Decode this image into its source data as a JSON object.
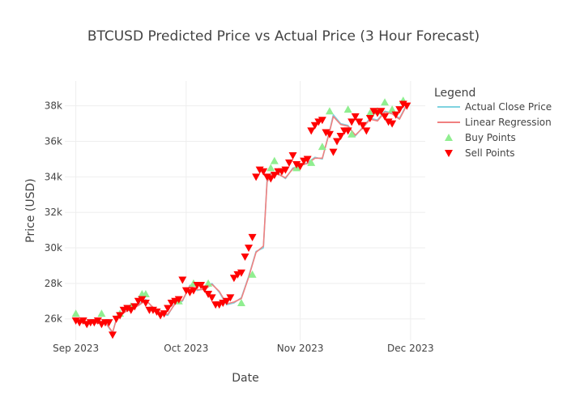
{
  "chart_data": {
    "type": "line",
    "title": "BTCUSD Predicted Price vs Actual Price (3 Hour Forecast)",
    "xlabel": "Date",
    "ylabel": "Price (USD)",
    "x_ticks": [
      "Sep 2023",
      "Oct 2023",
      "Nov 2023",
      "Dec 2023"
    ],
    "y_ticks": [
      "26k",
      "28k",
      "30k",
      "32k",
      "34k",
      "36k",
      "38k"
    ],
    "y_tick_values": [
      26000,
      28000,
      30000,
      32000,
      34000,
      36000,
      38000
    ],
    "ylim": [
      24800,
      39400
    ],
    "xlim": [
      "2023-08-29",
      "2023-12-05"
    ],
    "grid": true,
    "legend": {
      "title": "Legend",
      "placement": "right",
      "entries": [
        "Actual Close Price",
        "Linear Regression",
        "Buy Points",
        "Sell Points"
      ]
    },
    "colors": {
      "actual": "#7fd3e0",
      "regression": "#f08080",
      "buy": "#90ee90",
      "sell": "#ff0000"
    },
    "series": [
      {
        "name": "Actual Close Price",
        "kind": "line",
        "x": [
          "2023-09-01",
          "2023-09-03",
          "2023-09-05",
          "2023-09-07",
          "2023-09-09",
          "2023-09-11",
          "2023-09-12",
          "2023-09-14",
          "2023-09-16",
          "2023-09-18",
          "2023-09-20",
          "2023-09-22",
          "2023-09-24",
          "2023-09-26",
          "2023-09-28",
          "2023-09-30",
          "2023-10-02",
          "2023-10-04",
          "2023-10-06",
          "2023-10-08",
          "2023-10-10",
          "2023-10-12",
          "2023-10-14",
          "2023-10-16",
          "2023-10-18",
          "2023-10-20",
          "2023-10-22",
          "2023-10-23",
          "2023-10-24",
          "2023-10-26",
          "2023-10-28",
          "2023-10-30",
          "2023-11-01",
          "2023-11-03",
          "2023-11-05",
          "2023-11-07",
          "2023-11-09",
          "2023-11-10",
          "2023-11-12",
          "2023-11-14",
          "2023-11-16",
          "2023-11-18",
          "2023-11-20",
          "2023-11-22",
          "2023-11-24",
          "2023-11-26",
          "2023-11-28",
          "2023-11-30"
        ],
        "y": [
          26000,
          25800,
          25800,
          25800,
          25800,
          25200,
          26000,
          26400,
          26500,
          26800,
          27100,
          26600,
          26300,
          26200,
          26900,
          27000,
          27900,
          27600,
          27700,
          28000,
          27500,
          26800,
          26900,
          27200,
          28400,
          29800,
          30000,
          33800,
          34200,
          34200,
          33900,
          34500,
          34600,
          34800,
          35100,
          35000,
          36600,
          37500,
          37000,
          36900,
          36300,
          36800,
          37300,
          37200,
          37700,
          37600,
          37300,
          38100
        ]
      },
      {
        "name": "Linear Regression",
        "kind": "line",
        "x": [
          "2023-09-01",
          "2023-09-03",
          "2023-09-05",
          "2023-09-07",
          "2023-09-09",
          "2023-09-11",
          "2023-09-12",
          "2023-09-14",
          "2023-09-16",
          "2023-09-18",
          "2023-09-20",
          "2023-09-22",
          "2023-09-24",
          "2023-09-26",
          "2023-09-28",
          "2023-09-30",
          "2023-10-02",
          "2023-10-04",
          "2023-10-06",
          "2023-10-08",
          "2023-10-10",
          "2023-10-12",
          "2023-10-14",
          "2023-10-16",
          "2023-10-18",
          "2023-10-20",
          "2023-10-22",
          "2023-10-23",
          "2023-10-24",
          "2023-10-26",
          "2023-10-28",
          "2023-10-30",
          "2023-11-01",
          "2023-11-03",
          "2023-11-05",
          "2023-11-07",
          "2023-11-09",
          "2023-11-10",
          "2023-11-12",
          "2023-11-14",
          "2023-11-16",
          "2023-11-18",
          "2023-11-20",
          "2023-11-22",
          "2023-11-24",
          "2023-11-26",
          "2023-11-28",
          "2023-11-30"
        ],
        "y": [
          25950,
          25750,
          25780,
          25760,
          25820,
          25250,
          25950,
          26350,
          26550,
          26750,
          27050,
          26650,
          26350,
          26250,
          26850,
          27050,
          27850,
          27650,
          27650,
          27950,
          27550,
          26850,
          26950,
          27150,
          28350,
          29750,
          30100,
          33700,
          34100,
          34150,
          33950,
          34450,
          34650,
          34750,
          35050,
          35050,
          36550,
          37400,
          36950,
          36850,
          36350,
          36750,
          37250,
          37150,
          37650,
          37550,
          37250,
          38050
        ]
      },
      {
        "name": "Buy Points",
        "kind": "markers",
        "x": [
          "2023-09-01",
          "2023-09-08",
          "2023-09-13",
          "2023-09-16",
          "2023-09-19",
          "2023-09-20",
          "2023-09-29",
          "2023-10-03",
          "2023-10-07",
          "2023-10-16",
          "2023-10-19",
          "2023-10-24",
          "2023-10-25",
          "2023-10-31",
          "2023-11-04",
          "2023-11-07",
          "2023-11-09",
          "2023-11-14",
          "2023-11-15",
          "2023-11-20",
          "2023-11-22",
          "2023-11-24",
          "2023-11-26",
          "2023-11-29"
        ],
        "y": [
          26300,
          26300,
          26300,
          26700,
          27400,
          27400,
          27000,
          28000,
          28000,
          26900,
          28500,
          34500,
          34900,
          34500,
          34800,
          35700,
          37700,
          37800,
          36400,
          37600,
          37700,
          38200,
          37800,
          38300
        ]
      },
      {
        "name": "Sell Points",
        "kind": "markers",
        "x": [
          "2023-09-01",
          "2023-09-02",
          "2023-09-03",
          "2023-09-04",
          "2023-09-05",
          "2023-09-06",
          "2023-09-07",
          "2023-09-08",
          "2023-09-09",
          "2023-09-10",
          "2023-09-11",
          "2023-09-12",
          "2023-09-13",
          "2023-09-14",
          "2023-09-15",
          "2023-09-16",
          "2023-09-17",
          "2023-09-18",
          "2023-09-19",
          "2023-09-20",
          "2023-09-21",
          "2023-09-22",
          "2023-09-23",
          "2023-09-24",
          "2023-09-25",
          "2023-09-26",
          "2023-09-27",
          "2023-09-28",
          "2023-09-29",
          "2023-09-30",
          "2023-10-01",
          "2023-10-02",
          "2023-10-03",
          "2023-10-04",
          "2023-10-05",
          "2023-10-06",
          "2023-10-07",
          "2023-10-08",
          "2023-10-09",
          "2023-10-10",
          "2023-10-11",
          "2023-10-12",
          "2023-10-13",
          "2023-10-14",
          "2023-10-15",
          "2023-10-16",
          "2023-10-17",
          "2023-10-18",
          "2023-10-19",
          "2023-10-20",
          "2023-10-21",
          "2023-10-22",
          "2023-10-23",
          "2023-10-24",
          "2023-10-25",
          "2023-10-26",
          "2023-10-27",
          "2023-10-28",
          "2023-10-29",
          "2023-10-30",
          "2023-10-31",
          "2023-11-01",
          "2023-11-02",
          "2023-11-03",
          "2023-11-04",
          "2023-11-05",
          "2023-11-06",
          "2023-11-07",
          "2023-11-08",
          "2023-11-09",
          "2023-11-10",
          "2023-11-11",
          "2023-11-12",
          "2023-11-13",
          "2023-11-14",
          "2023-11-15",
          "2023-11-16",
          "2023-11-17",
          "2023-11-18",
          "2023-11-19",
          "2023-11-20",
          "2023-11-21",
          "2023-11-22",
          "2023-11-23",
          "2023-11-24",
          "2023-11-25",
          "2023-11-26",
          "2023-11-27",
          "2023-11-28",
          "2023-11-29",
          "2023-11-30"
        ],
        "y": [
          25900,
          25800,
          25900,
          25700,
          25800,
          25800,
          25900,
          25700,
          25800,
          25800,
          25100,
          26000,
          26200,
          26500,
          26600,
          26500,
          26700,
          27000,
          27100,
          26900,
          26500,
          26500,
          26400,
          26200,
          26300,
          26600,
          26900,
          27000,
          27100,
          28200,
          27600,
          27500,
          27600,
          27900,
          27900,
          27700,
          27400,
          27200,
          26800,
          26800,
          26900,
          27000,
          27200,
          28300,
          28500,
          28600,
          29500,
          30000,
          30600,
          34000,
          34400,
          34300,
          34000,
          33900,
          34100,
          34300,
          34300,
          34400,
          34800,
          35200,
          34700,
          34600,
          34900,
          35000,
          36600,
          36900,
          37100,
          37200,
          36500,
          36400,
          35400,
          36000,
          36300,
          36600,
          36600,
          37100,
          37400,
          37100,
          36900,
          36600,
          37300,
          37700,
          37600,
          37700,
          37400,
          37100,
          37000,
          37500,
          37800,
          38100,
          38000
        ]
      }
    ]
  }
}
